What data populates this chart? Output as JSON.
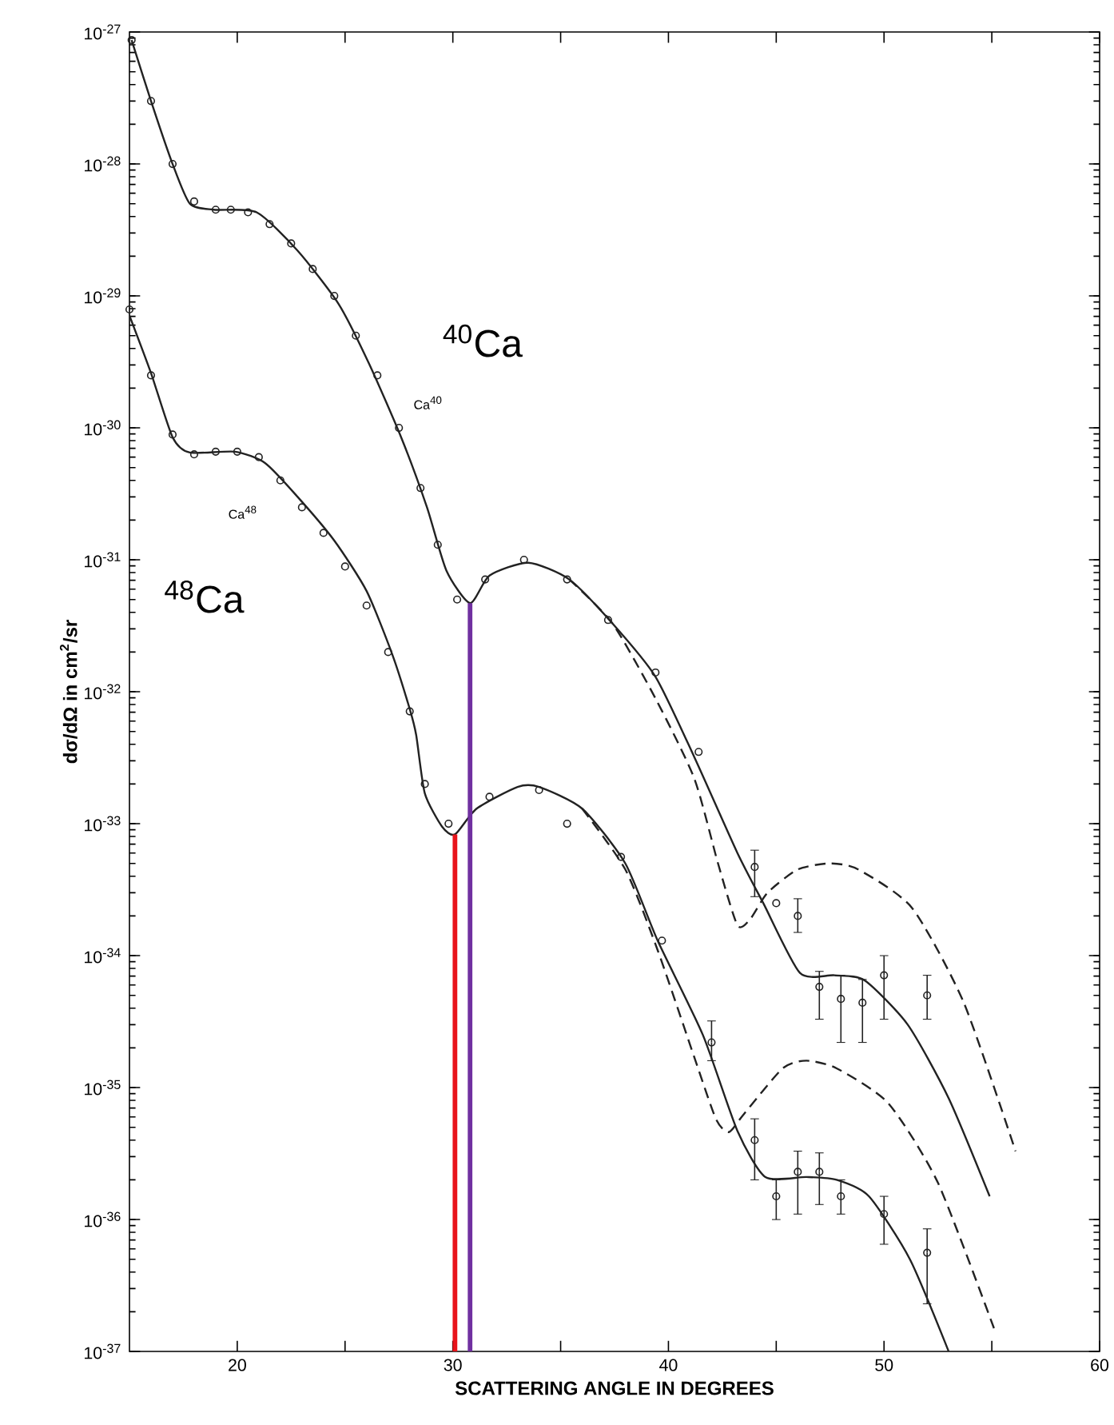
{
  "chart_data": {
    "type": "line",
    "log": "y",
    "xlabel": "SCATTERING ANGLE IN DEGREES",
    "ylabel": "dσ/dΩ in cm$^{2}$/sr",
    "xlim": [
      15,
      60
    ],
    "ylim": [
      1e-37,
      1e-27
    ],
    "xticks": [
      20,
      {
        "value": 25,
        "label": null
      },
      30,
      {
        "value": 35,
        "label": null
      },
      40,
      {
        "value": 45,
        "label": null
      },
      50,
      {
        "value": 55,
        "label": null
      },
      60
    ],
    "yticks": [
      {
        "value": 1e-37,
        "label": "10$^{-37}$"
      },
      {
        "value": 1e-36,
        "label": "10$^{-36}$"
      },
      {
        "value": 1e-35,
        "label": "10$^{-35}$"
      },
      {
        "value": 1e-34,
        "label": "10$^{-34}$"
      },
      {
        "value": 1e-33,
        "label": "10$^{-33}$"
      },
      {
        "value": 1e-32,
        "label": "10$^{-32}$"
      },
      {
        "value": 1e-31,
        "label": "10$^{-31}$"
      },
      {
        "value": 1e-30,
        "label": "10$^{-30}$"
      },
      {
        "value": 1e-29,
        "label": "10$^{-29}$"
      },
      {
        "value": 1e-28,
        "label": "10$^{-28}$"
      },
      {
        "value": 1e-27,
        "label": "10$^{-27}$"
      }
    ],
    "series": [
      {
        "color": "#222222",
        "line_style": "solid",
        "x": [
          15.1,
          16.0,
          17.0,
          17.8,
          18.9,
          20.9,
          22.8,
          24.7,
          26.1,
          27.6,
          28.8,
          29.7,
          30.8,
          31.7,
          33.5,
          35.4,
          37.4,
          39.4,
          41.2,
          43.2,
          44.4,
          46.1,
          47.7,
          49.1,
          51.1,
          53.0,
          54.9
        ],
        "values": [
          8.7e-28,
          3e-28,
          1e-28,
          5e-29,
          4.5e-29,
          4.3e-29,
          2.2e-29,
          8.7e-30,
          3.1e-30,
          8.5e-31,
          2.5e-31,
          8.3e-32,
          4.7e-32,
          7.6e-32,
          9.5e-32,
          7.1e-32,
          3.3e-32,
          1.3e-32,
          3.2e-33,
          6e-34,
          2.5e-34,
          7.4e-35,
          7.1e-35,
          6.5e-35,
          3e-35,
          8.3e-36,
          1.5e-36
        ]
      },
      {
        "color": "#222222",
        "line_style": "dashed",
        "x": [
          35.4,
          37.4,
          39.4,
          41.2,
          42.3,
          43.2,
          43.8,
          44.6,
          46.0,
          47.5,
          48.8,
          51.3,
          53.7,
          56.1
        ],
        "values": [
          7.1e-32,
          3.3e-32,
          8.9e-33,
          2.2e-33,
          5e-34,
          1.7e-34,
          1.9e-34,
          3e-34,
          4.5e-34,
          5e-34,
          4.5e-34,
          2.3e-34,
          4.4e-35,
          3.3e-36
        ]
      },
      {
        "type": "scatter",
        "color": "#222222",
        "marker": "circle",
        "x": [
          15.1,
          16,
          17,
          18,
          19,
          19.7,
          20.5,
          21.5,
          22.5,
          23.5,
          24.5,
          25.5,
          26.5,
          27.5,
          28.5,
          29.3,
          30.2,
          31.5,
          33.3,
          35.3,
          37.2,
          39.4,
          41.4,
          44,
          45,
          46,
          47,
          48,
          49,
          50,
          52
        ],
        "values": [
          8.7e-28,
          3e-28,
          1e-28,
          5.2e-29,
          4.5e-29,
          4.5e-29,
          4.3e-29,
          3.5e-29,
          2.5e-29,
          1.6e-29,
          1e-29,
          5e-30,
          2.5e-30,
          1e-30,
          3.5e-31,
          1.3e-31,
          5e-32,
          7.1e-32,
          1e-31,
          7.1e-32,
          3.5e-32,
          1.4e-32,
          3.5e-33,
          4.7e-34,
          2.5e-34,
          2e-34,
          5.8e-35,
          4.7e-35,
          4.4e-35,
          7.1e-35,
          5e-35
        ],
        "errors": [
          null,
          null,
          null,
          null,
          null,
          null,
          null,
          null,
          null,
          null,
          null,
          null,
          null,
          null,
          null,
          null,
          null,
          null,
          null,
          null,
          null,
          null,
          null,
          [
            2.8e-34,
            6.3e-34
          ],
          null,
          [
            1.5e-34,
            2.7e-34
          ],
          [
            3.3e-35,
            7.6e-35
          ],
          [
            2.2e-35,
            7.1e-35
          ],
          [
            2.2e-35,
            6.6e-35
          ],
          [
            3.3e-35,
            1e-34
          ],
          [
            3.3e-35,
            7.1e-35
          ]
        ]
      },
      {
        "color": "#222222",
        "line_style": "solid",
        "x": [
          15.0,
          16.0,
          17.0,
          17.8,
          19.9,
          21.3,
          22.8,
          24.5,
          26.0,
          27.2,
          28.0,
          28.3,
          28.7,
          29.5,
          30.1,
          31.1,
          33.0,
          34.0,
          36.0,
          38.0,
          39.5,
          41.6,
          43.2,
          44.5,
          46.4,
          47.8,
          49.3,
          51.2,
          53.0
        ],
        "values": [
          7.1e-30,
          2.6e-30,
          8.5e-31,
          6.5e-31,
          6.6e-31,
          5.4e-31,
          3e-31,
          1.4e-31,
          5.8e-32,
          1.9e-32,
          7.4e-33,
          4.7e-33,
          1.7e-33,
          9.5e-34,
          8.3e-34,
          1.3e-33,
          1.9e-33,
          1.9e-33,
          1.3e-33,
          5e-34,
          1.3e-34,
          2.5e-35,
          4.7e-36,
          2.1e-36,
          2.1e-36,
          2e-36,
          1.5e-36,
          5e-37,
          1e-37
        ]
      },
      {
        "color": "#222222",
        "line_style": "dashed",
        "x": [
          36.0,
          38.0,
          39.5,
          41.2,
          42.2,
          42.8,
          43.5,
          45.3,
          46.4,
          47.8,
          50.2,
          52.5,
          55.1
        ],
        "values": [
          1.3e-33,
          4.5e-34,
          1.1e-34,
          1.7e-35,
          5.8e-36,
          4.6e-36,
          6.3e-36,
          1.4e-35,
          1.6e-35,
          1.4e-35,
          7.6e-36,
          1.9e-36,
          1.5e-37
        ]
      },
      {
        "type": "scatter",
        "color": "#222222",
        "marker": "circle",
        "x": [
          15,
          16,
          17,
          18,
          19,
          20,
          21,
          22,
          23,
          24,
          25,
          26,
          27,
          28,
          28.7,
          29.8,
          31.7,
          34,
          35.3,
          37.8,
          39.7,
          42,
          44,
          45,
          46,
          47,
          48,
          50,
          52
        ],
        "values": [
          7.9e-30,
          2.5e-30,
          8.9e-31,
          6.3e-31,
          6.6e-31,
          6.6e-31,
          6e-31,
          4e-31,
          2.5e-31,
          1.6e-31,
          8.9e-32,
          4.5e-32,
          2e-32,
          7.1e-33,
          2e-33,
          1e-33,
          1.6e-33,
          1.8e-33,
          1e-33,
          5.6e-34,
          1.3e-34,
          2.2e-35,
          4e-36,
          1.5e-36,
          2.3e-36,
          2.3e-36,
          1.5e-36,
          1.1e-36,
          5.6e-37
        ],
        "errors": [
          null,
          null,
          null,
          null,
          null,
          null,
          null,
          null,
          null,
          null,
          null,
          null,
          null,
          null,
          null,
          null,
          null,
          null,
          null,
          null,
          null,
          [
            1.6e-35,
            3.2e-35
          ],
          [
            2e-36,
            5.8e-36
          ],
          [
            1e-36,
            2e-36
          ],
          [
            1.1e-36,
            3.3e-36
          ],
          [
            1.3e-36,
            3.2e-36
          ],
          [
            1.1e-36,
            2e-36
          ],
          [
            6.5e-37,
            1.5e-36
          ],
          [
            2.3e-37,
            8.5e-37
          ]
        ]
      },
      {
        "color": "#e8141b",
        "line_style": "solid",
        "x": [
          30.1,
          30.1
        ],
        "values": [
          1e-37,
          8.3e-34
        ]
      },
      {
        "color": "#7030a0",
        "line_style": "solid",
        "x": [
          30.8,
          30.8
        ],
        "values": [
          1e-37,
          4.7e-32
        ]
      }
    ],
    "annotations": [
      "$^{40}$Ca",
      "Ca$^{40}$",
      "Ca$^{48}$",
      "$^{48}$Ca"
    ]
  }
}
